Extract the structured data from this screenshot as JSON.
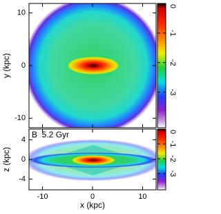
{
  "chart_data": [
    {
      "type": "heatmap",
      "ylabel": "y (kpc)",
      "xlim": [
        -12.7,
        12.7
      ],
      "xticks": [
        -10,
        0,
        10
      ],
      "ylim": [
        -11.8,
        11.8
      ],
      "yticks": [
        -10,
        0,
        10
      ],
      "colorbar": {
        "lim": [
          -4.2,
          0
        ],
        "ticks": [
          0,
          -1,
          -2,
          -3
        ]
      }
    },
    {
      "type": "heatmap",
      "annotation": "B  5.2 Gyr",
      "xlabel": "x (kpc)",
      "ylabel": "z (kpc)",
      "xlim": [
        -12.7,
        12.7
      ],
      "xticks": [
        -10,
        0,
        10
      ],
      "ylim": [
        -6.2,
        6.2
      ],
      "yticks": [
        -4,
        0,
        4
      ],
      "colorbar": {
        "lim": [
          -4.1,
          0
        ],
        "ticks": [
          0,
          -1,
          -2,
          -3
        ]
      }
    }
  ]
}
